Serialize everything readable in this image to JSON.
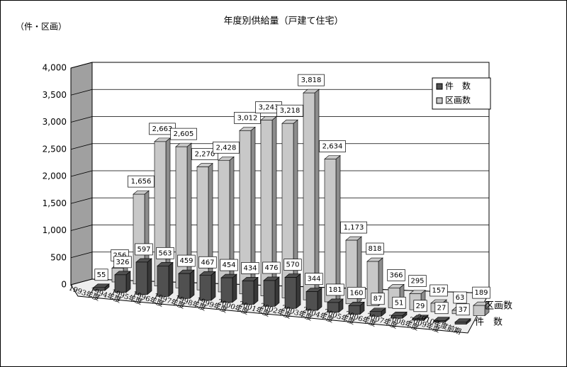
{
  "chart_data": {
    "type": "bar",
    "title": "年度別供給量（戸建て住宅）",
    "y_unit_label": "（件・区画）",
    "categories": [
      "1993年度",
      "1994年度",
      "1995年度",
      "1996年度",
      "1997年度",
      "1998年度",
      "1999年度",
      "2000年度",
      "2001年度",
      "2002年度",
      "2003年度",
      "2004年度",
      "2005年度",
      "2006年度",
      "2007年度",
      "2008年度",
      "2009年度",
      "2010年度前期"
    ],
    "series": [
      {
        "name": "件　数",
        "color": "#505050",
        "values": [
          55,
          326,
          597,
          563,
          459,
          467,
          454,
          434,
          476,
          570,
          344,
          181,
          160,
          87,
          51,
          29,
          27,
          37
        ]
      },
      {
        "name": "区画数",
        "color": "#c8c8c8",
        "values": [
          256,
          1656,
          2663,
          2605,
          2270,
          2428,
          3012,
          3243,
          3218,
          3818,
          2634,
          1173,
          818,
          366,
          295,
          157,
          63,
          189
        ],
        "value_labels": [
          "256",
          "1,656",
          "2,663",
          "2,605",
          "2,270",
          "2,428",
          "3,012",
          "3,243",
          "3,218",
          "3,818",
          "2,634",
          "1,173",
          "818",
          "366",
          "295",
          "157",
          "63",
          "189"
        ]
      }
    ],
    "ylim": [
      0,
      4000
    ],
    "yticks": [
      0,
      500,
      {
        "value": 1000,
        "label": "1,000"
      },
      {
        "value": 1500,
        "label": "1,500"
      },
      {
        "value": 2000,
        "label": "2,000"
      },
      {
        "value": 2500,
        "label": "2,500"
      },
      {
        "value": 3000,
        "label": "3,000"
      },
      {
        "value": 3500,
        "label": "3,500"
      },
      {
        "value": 4000,
        "label": "4,000"
      }
    ],
    "grid": true,
    "legend": "upper-right"
  }
}
